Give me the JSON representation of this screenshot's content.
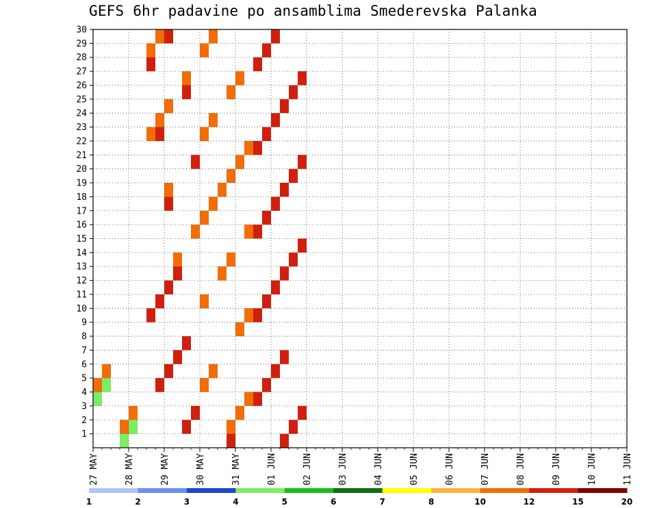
{
  "chart_data": {
    "type": "heatmap",
    "title": "GEFS 6hr padavine po ansamblima Smederevska Palanka",
    "xlabel": "",
    "ylabel": "",
    "x_ticks": [
      "27 MAY",
      "28 MAY",
      "29 MAY",
      "30 MAY",
      "31 MAY",
      "01 JUN",
      "02 JUN",
      "03 JUN",
      "04 JUN",
      "05 JUN",
      "06 JUN",
      "07 JUN",
      "08 JUN",
      "09 JUN",
      "10 JUN",
      "11 JUN"
    ],
    "y_ticks": [
      "1",
      "2",
      "3",
      "4",
      "5",
      "6",
      "7",
      "8",
      "9",
      "10",
      "11",
      "12",
      "13",
      "14",
      "15",
      "16",
      "17",
      "18",
      "19",
      "20",
      "21",
      "22",
      "23",
      "24",
      "25",
      "26",
      "27",
      "28",
      "29",
      "30"
    ],
    "xlim_days": [
      0,
      15
    ],
    "time_step_hours": 6,
    "ylim": [
      0,
      30
    ],
    "grid": true,
    "colorbar": {
      "levels": [
        "1",
        "2",
        "3",
        "4",
        "5",
        "6",
        "7",
        "8",
        "10",
        "12",
        "15",
        "20"
      ],
      "colors": [
        "#b0c4f6",
        "#6b8ff0",
        "#1d46d6",
        "#7ced62",
        "#19be1a",
        "#0e6e13",
        "#ffff00",
        "#ffb23f",
        "#f26d06",
        "#d11f0e",
        "#7f0000"
      ]
    },
    "cells": [
      [
        0,
        9,
        0
      ],
      [
        0,
        8,
        5
      ],
      [
        0,
        8,
        4
      ],
      [
        0,
        8,
        2
      ],
      [
        0,
        8,
        1
      ],
      [
        0,
        3,
        4
      ],
      [
        0,
        3,
        3
      ],
      [
        0,
        3,
        1
      ],
      [
        0,
        3,
        0
      ],
      [
        1,
        9,
        1
      ],
      [
        1,
        9,
        2
      ],
      [
        1,
        9,
        4
      ],
      [
        1,
        9,
        5
      ],
      [
        1,
        9,
        6
      ],
      [
        1,
        9,
        7
      ],
      [
        1,
        9,
        9
      ],
      [
        1,
        9,
        10
      ],
      [
        1,
        9,
        11
      ],
      [
        1,
        9,
        12
      ],
      [
        1,
        8,
        13
      ],
      [
        1,
        8,
        15
      ],
      [
        1,
        9,
        17
      ],
      [
        1,
        8,
        18
      ],
      [
        1,
        9,
        20
      ],
      [
        1,
        9,
        22
      ],
      [
        1,
        8,
        22
      ],
      [
        1,
        8,
        23
      ],
      [
        1,
        8,
        24
      ],
      [
        1,
        9,
        25
      ],
      [
        1,
        8,
        26
      ],
      [
        1,
        9,
        27
      ],
      [
        1,
        8,
        28
      ],
      [
        1,
        9,
        29
      ],
      [
        1,
        8,
        29
      ],
      [
        2,
        9,
        0
      ],
      [
        2,
        8,
        1
      ],
      [
        2,
        8,
        2
      ],
      [
        2,
        8,
        3
      ],
      [
        2,
        8,
        4
      ],
      [
        2,
        8,
        5
      ],
      [
        2,
        8,
        8
      ],
      [
        2,
        8,
        9
      ],
      [
        2,
        8,
        10
      ],
      [
        2,
        8,
        12
      ],
      [
        2,
        8,
        13
      ],
      [
        2,
        8,
        15
      ],
      [
        2,
        8,
        16
      ],
      [
        2,
        8,
        17
      ],
      [
        2,
        8,
        18
      ],
      [
        2,
        8,
        19
      ],
      [
        2,
        8,
        20
      ],
      [
        2,
        8,
        21
      ],
      [
        2,
        8,
        22
      ],
      [
        2,
        8,
        23
      ],
      [
        2,
        8,
        25
      ],
      [
        2,
        8,
        26
      ],
      [
        2,
        8,
        28
      ],
      [
        2,
        8,
        29
      ],
      [
        3,
        9,
        0
      ],
      [
        3,
        9,
        1
      ],
      [
        3,
        9,
        2
      ],
      [
        3,
        9,
        3
      ],
      [
        3,
        9,
        4
      ],
      [
        3,
        9,
        5
      ],
      [
        3,
        9,
        6
      ],
      [
        3,
        9,
        9
      ],
      [
        3,
        9,
        10
      ],
      [
        3,
        9,
        11
      ],
      [
        3,
        9,
        12
      ],
      [
        3,
        9,
        13
      ],
      [
        3,
        9,
        14
      ],
      [
        3,
        9,
        15
      ],
      [
        3,
        9,
        16
      ],
      [
        3,
        9,
        17
      ],
      [
        3,
        9,
        18
      ],
      [
        3,
        9,
        19
      ],
      [
        3,
        9,
        20
      ],
      [
        3,
        9,
        21
      ],
      [
        3,
        9,
        22
      ],
      [
        3,
        9,
        23
      ],
      [
        3,
        9,
        24
      ],
      [
        3,
        9,
        25
      ],
      [
        3,
        9,
        26
      ],
      [
        3,
        9,
        27
      ],
      [
        3,
        9,
        28
      ],
      [
        3,
        9,
        29
      ]
    ]
  }
}
